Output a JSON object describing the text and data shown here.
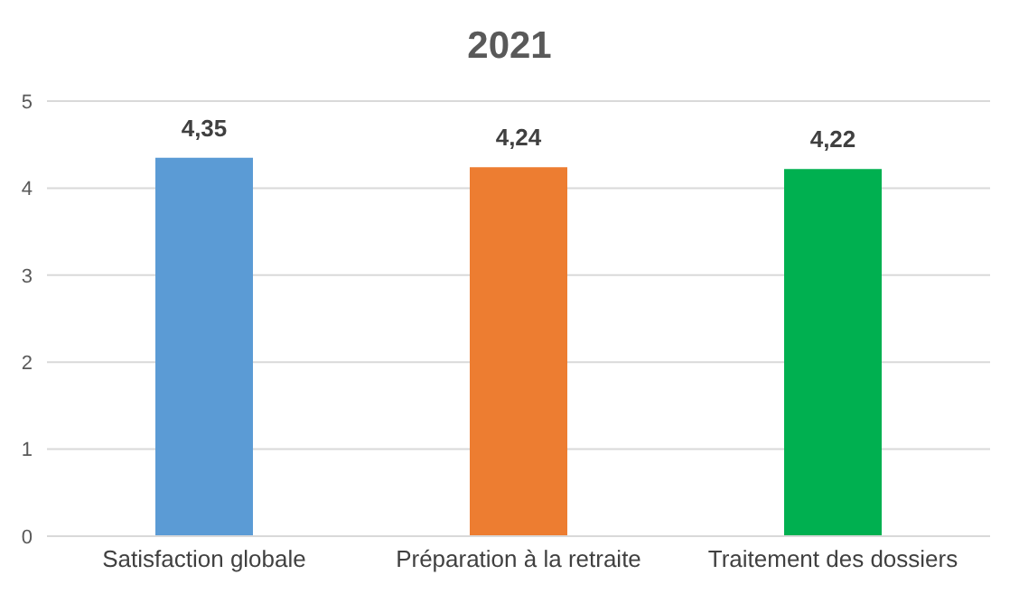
{
  "chart_data": {
    "type": "bar",
    "title": "2021",
    "categories": [
      "Satisfaction globale",
      "Préparation à la retraite",
      "Traitement des dossiers"
    ],
    "values": [
      4.35,
      4.24,
      4.22
    ],
    "colors": [
      "#5b9bd5",
      "#ed7d31",
      "#00b050"
    ],
    "value_labels": [
      "4,35",
      "4,24",
      "4,22"
    ],
    "ylim": [
      0,
      5
    ],
    "yticks": [
      0,
      1,
      2,
      3,
      4,
      5
    ],
    "grid": "y"
  }
}
